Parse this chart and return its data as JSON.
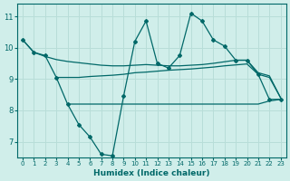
{
  "xlabel": "Humidex (Indice chaleur)",
  "x": [
    0,
    1,
    2,
    3,
    4,
    5,
    6,
    7,
    8,
    9,
    10,
    11,
    12,
    13,
    14,
    15,
    16,
    17,
    18,
    19,
    20,
    21,
    22,
    23
  ],
  "line_zigzag": [
    10.25,
    9.85,
    9.75,
    9.05,
    8.2,
    7.55,
    7.15,
    6.6,
    6.55,
    8.45,
    10.2,
    10.85,
    9.5,
    9.35,
    9.75,
    11.1,
    10.85,
    10.25,
    10.05,
    9.6,
    9.6,
    9.15,
    8.35,
    8.35
  ],
  "line_upper": [
    10.25,
    9.85,
    9.72,
    9.62,
    9.56,
    9.52,
    9.48,
    9.44,
    9.42,
    9.42,
    9.44,
    9.46,
    9.44,
    9.42,
    9.42,
    9.44,
    9.46,
    9.5,
    9.55,
    9.6,
    9.6,
    9.2,
    9.1,
    8.4
  ],
  "line_mid": [
    null,
    null,
    null,
    9.05,
    9.05,
    9.05,
    9.08,
    9.1,
    9.12,
    9.15,
    9.2,
    9.22,
    9.25,
    9.28,
    9.3,
    9.32,
    9.35,
    9.38,
    9.42,
    9.45,
    9.48,
    9.15,
    9.05,
    8.4
  ],
  "line_lower": [
    null,
    null,
    null,
    null,
    8.2,
    8.2,
    8.2,
    8.2,
    8.2,
    8.2,
    8.2,
    8.2,
    8.2,
    8.2,
    8.2,
    8.2,
    8.2,
    8.2,
    8.2,
    8.2,
    8.2,
    8.2,
    8.3,
    8.35
  ],
  "bg_color": "#d0eeea",
  "grid_color": "#b8ddd8",
  "line_color": "#006868",
  "ylim": [
    6.5,
    11.4
  ],
  "xlim": [
    -0.5,
    23.5
  ],
  "yticks": [
    7,
    8,
    9,
    10,
    11
  ],
  "xticks": [
    0,
    1,
    2,
    3,
    4,
    5,
    6,
    7,
    8,
    9,
    10,
    11,
    12,
    13,
    14,
    15,
    16,
    17,
    18,
    19,
    20,
    21,
    22,
    23
  ]
}
